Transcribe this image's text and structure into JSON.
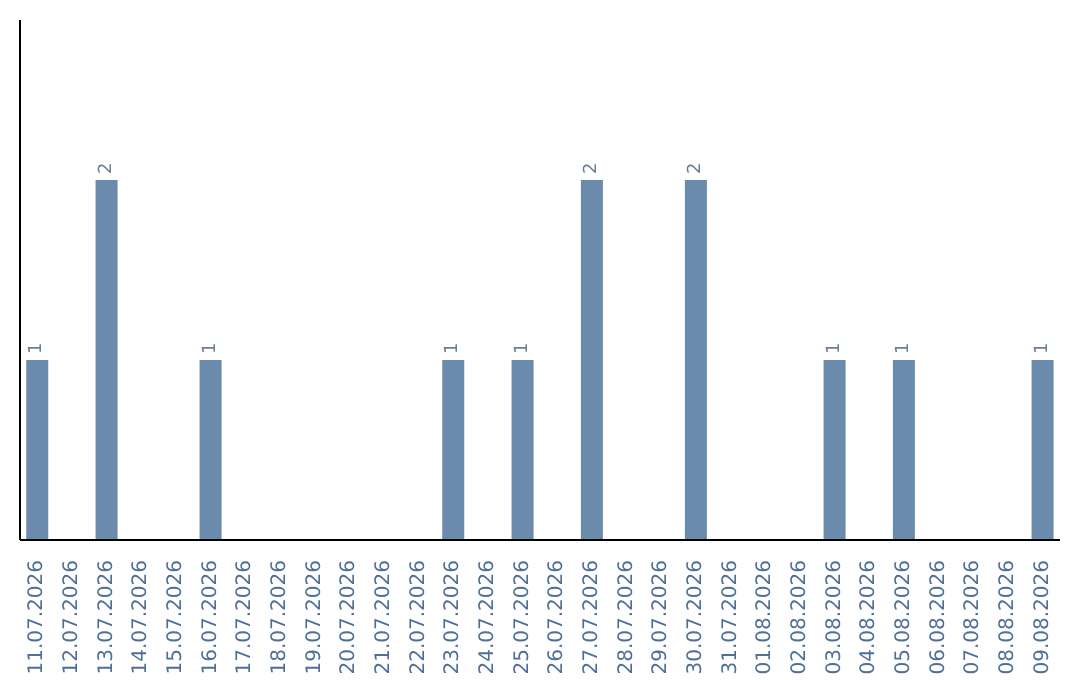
{
  "chart_data": {
    "type": "bar",
    "categories": [
      "11.07.2026",
      "12.07.2026",
      "13.07.2026",
      "14.07.2026",
      "15.07.2026",
      "16.07.2026",
      "17.07.2026",
      "18.07.2026",
      "19.07.2026",
      "20.07.2026",
      "21.07.2026",
      "22.07.2026",
      "23.07.2026",
      "24.07.2026",
      "25.07.2026",
      "26.07.2026",
      "27.07.2026",
      "28.07.2026",
      "29.07.2026",
      "30.07.2026",
      "31.07.2026",
      "01.08.2026",
      "02.08.2026",
      "03.08.2026",
      "04.08.2026",
      "05.08.2026",
      "06.08.2026",
      "07.08.2026",
      "08.08.2026",
      "09.08.2026"
    ],
    "values": [
      1,
      0,
      2,
      0,
      0,
      1,
      0,
      0,
      0,
      0,
      0,
      0,
      1,
      0,
      1,
      0,
      2,
      0,
      0,
      2,
      0,
      0,
      0,
      1,
      0,
      1,
      0,
      0,
      0,
      1
    ],
    "value_labels": [
      "1",
      null,
      "2",
      null,
      null,
      "1",
      null,
      null,
      null,
      null,
      null,
      null,
      "1",
      null,
      "1",
      null,
      "2",
      null,
      null,
      "2",
      null,
      null,
      null,
      "1",
      null,
      "1",
      null,
      null,
      null,
      "1"
    ],
    "color": "#6a8bac",
    "grid": false,
    "legend": false
  }
}
